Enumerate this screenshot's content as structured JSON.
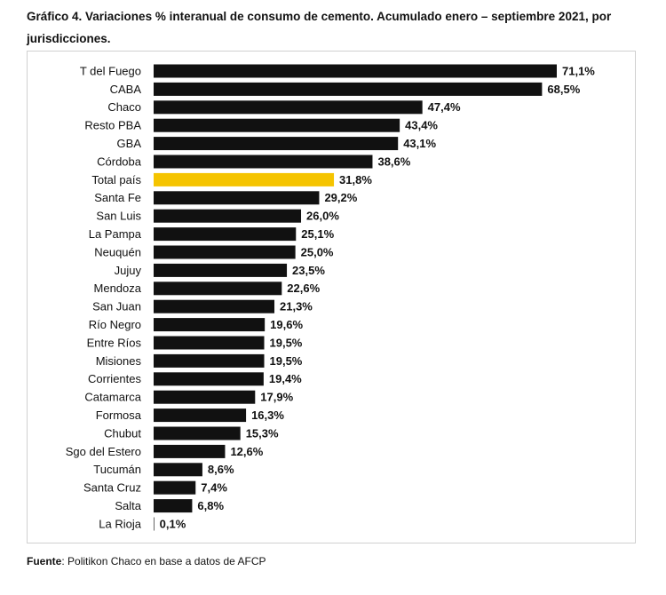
{
  "chart_data": {
    "type": "barh",
    "title": "Gráfico 4. Variaciones % interanual de consumo de cemento. Acumulado enero – septiembre 2021, por jurisdicciones.",
    "categories": [
      "T del Fuego",
      "CABA",
      "Chaco",
      "Resto PBA",
      "GBA",
      "Córdoba",
      "Total país",
      "Santa Fe",
      "San Luis",
      "La Pampa",
      "Neuquén",
      "Jujuy",
      "Mendoza",
      "San Juan",
      "Río Negro",
      "Entre Ríos",
      "Misiones",
      "Corrientes",
      "Catamarca",
      "Formosa",
      "Chubut",
      "Sgo del Estero",
      "Tucumán",
      "Santa Cruz",
      "Salta",
      "La Rioja"
    ],
    "values": [
      71.1,
      68.5,
      47.4,
      43.4,
      43.1,
      38.6,
      31.8,
      29.2,
      26.0,
      25.1,
      25.0,
      23.5,
      22.6,
      21.3,
      19.6,
      19.5,
      19.5,
      19.4,
      17.9,
      16.3,
      15.3,
      12.6,
      8.6,
      7.4,
      6.8,
      0.1
    ],
    "value_labels": [
      "71,1%",
      "68,5%",
      "47,4%",
      "43,4%",
      "43,1%",
      "38,6%",
      "31,8%",
      "29,2%",
      "26,0%",
      "25,1%",
      "25,0%",
      "23,5%",
      "22,6%",
      "21,3%",
      "19,6%",
      "19,5%",
      "19,5%",
      "19,4%",
      "17,9%",
      "16,3%",
      "15,3%",
      "12,6%",
      "8,6%",
      "7,4%",
      "6,8%",
      "0,1%"
    ],
    "colors": [
      "#111111",
      "#111111",
      "#111111",
      "#111111",
      "#111111",
      "#111111",
      "#f5c400",
      "#111111",
      "#111111",
      "#111111",
      "#111111",
      "#111111",
      "#111111",
      "#111111",
      "#111111",
      "#111111",
      "#111111",
      "#111111",
      "#111111",
      "#111111",
      "#111111",
      "#111111",
      "#111111",
      "#111111",
      "#111111",
      "#111111"
    ],
    "source_label": "Fuente",
    "source": ": Politikon Chaco en base a datos de AFCP"
  }
}
